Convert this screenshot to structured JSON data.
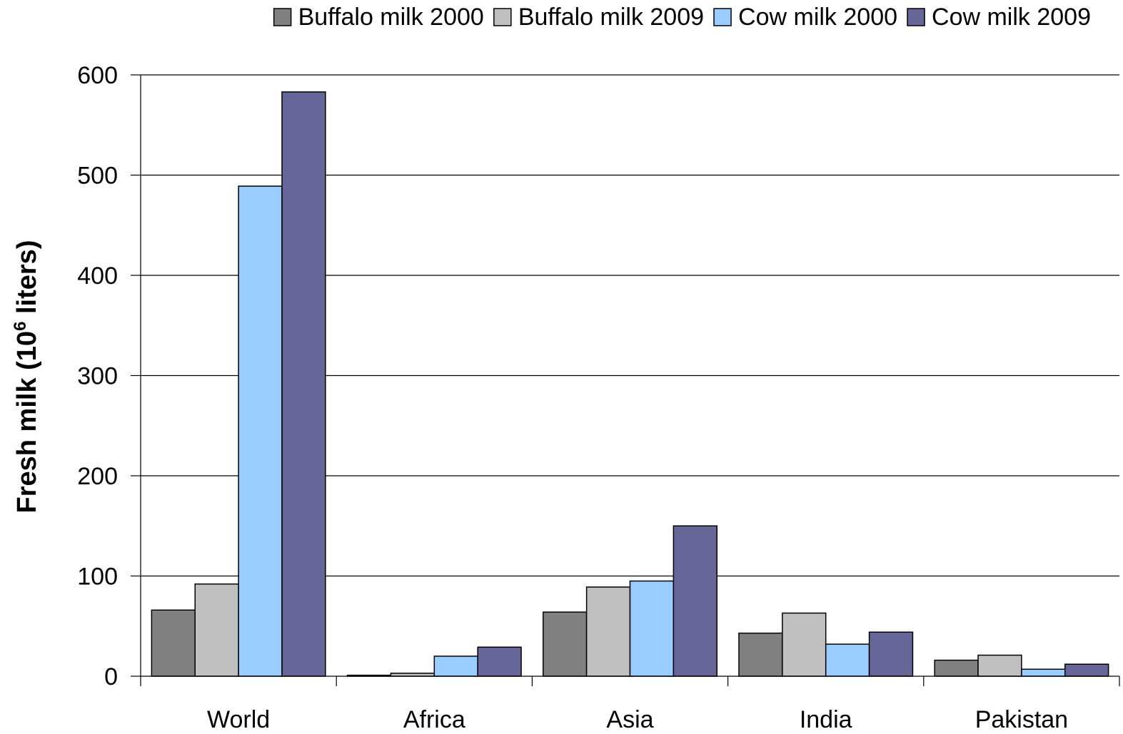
{
  "chart_data": {
    "type": "bar",
    "title": "",
    "xlabel": "",
    "ylabel": {
      "prefix": "Fresh milk (10",
      "superscript": "6",
      "suffix": " liters)"
    },
    "ylim": [
      0,
      600
    ],
    "yticks": [
      0,
      100,
      200,
      300,
      400,
      500,
      600
    ],
    "grid": true,
    "legend_position": "top",
    "categories": [
      "World",
      "Africa",
      "Asia",
      "India",
      "Pakistan"
    ],
    "series": [
      {
        "name": "Buffalo milk 2000",
        "color": "#808080",
        "values": [
          66,
          1,
          64,
          43,
          16
        ]
      },
      {
        "name": "Buffalo milk 2009",
        "color": "#c0c0c0",
        "values": [
          92,
          3,
          89,
          63,
          21
        ]
      },
      {
        "name": "Cow milk 2000",
        "color": "#99ccff",
        "values": [
          489,
          20,
          95,
          32,
          7
        ]
      },
      {
        "name": "Cow milk 2009",
        "color": "#666699",
        "values": [
          583,
          29,
          150,
          44,
          12
        ]
      }
    ]
  }
}
